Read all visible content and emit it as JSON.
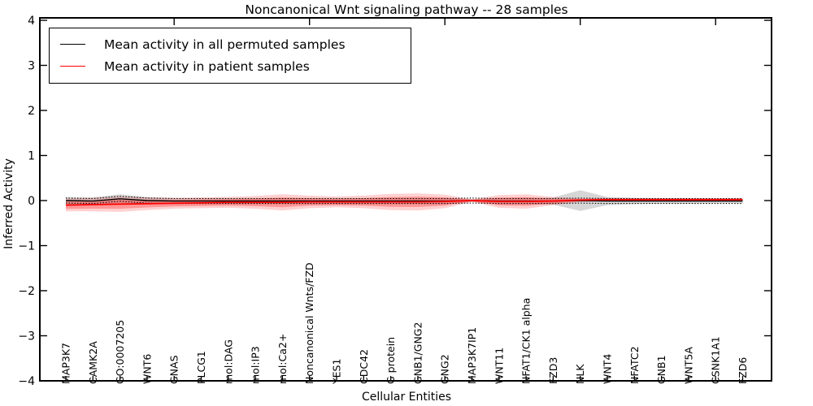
{
  "title": "Noncanonical Wnt signaling pathway -- 28 samples",
  "axes": {
    "ylabel": "Inferred Activity",
    "xlabel": "Cellular Entities",
    "yticks": [
      {
        "label": "4",
        "value": 4
      },
      {
        "label": "3",
        "value": 3
      },
      {
        "label": "2",
        "value": 2
      },
      {
        "label": "1",
        "value": 1
      },
      {
        "label": "0",
        "value": 0
      },
      {
        "label": "−1",
        "value": -1
      },
      {
        "label": "−2",
        "value": -2
      },
      {
        "label": "−3",
        "value": -3
      },
      {
        "label": "−4",
        "value": -4
      }
    ]
  },
  "legend": {
    "entries": [
      {
        "label": "Mean activity in all permuted samples",
        "color": "#000000"
      },
      {
        "label": "Mean activity in patient samples",
        "color": "#ff0000"
      }
    ]
  },
  "chart_data": {
    "type": "line",
    "title": "Noncanonical Wnt signaling pathway -- 28 samples",
    "xlabel": "Cellular Entities",
    "ylabel": "Inferred Activity",
    "ylim": [
      -4,
      4
    ],
    "grid": false,
    "legend_position": "upper left",
    "x_major_ticks": [
      5,
      10,
      15,
      20,
      25
    ],
    "categories": [
      "MAP3K7",
      "CAMK2A",
      "GO:0007205",
      "WNT6",
      "GNAS",
      "PLCG1",
      "mol:DAG",
      "mol:IP3",
      "mol:Ca2+",
      "Noncanonical Wnts/FZD",
      "YES1",
      "CDC42",
      "G protein",
      "GNB1/GNG2",
      "GNG2",
      "MAP3K7IP1",
      "WNT11",
      "NFAT1/CK1 alpha",
      "FZD3",
      "NLK",
      "WNT4",
      "NFATC2",
      "GNB1",
      "WNT5A",
      "CSNK1A1",
      "FZD6"
    ],
    "series": [
      {
        "name": "Mean activity in all permuted samples",
        "color": "#000000",
        "band_fill": "rgba(0,0,0,0.16)",
        "dotted_offset": 0.055,
        "values": [
          0,
          -0.01,
          0.04,
          0,
          -0.01,
          -0.01,
          -0.01,
          -0.01,
          -0.01,
          -0.01,
          -0.01,
          -0.01,
          -0.01,
          -0.01,
          -0.01,
          0,
          -0.01,
          -0.01,
          -0.01,
          0,
          -0.01,
          -0.01,
          -0.01,
          -0.01,
          -0.01,
          -0.01
        ],
        "std": [
          0.08,
          0.08,
          0.1,
          0.08,
          0.07,
          0.07,
          0.07,
          0.07,
          0.07,
          0.07,
          0.07,
          0.07,
          0.07,
          0.07,
          0.07,
          0.03,
          0.07,
          0.07,
          0.08,
          0.23,
          0.09,
          0.07,
          0.06,
          0.06,
          0.05,
          0.05
        ]
      },
      {
        "name": "Mean activity in patient samples",
        "color": "#ff0000",
        "band_fill": "rgba(255,0,0,0.18)",
        "inner_band_fill": "rgba(255,0,0,0.28)",
        "values": [
          -0.1,
          -0.09,
          -0.08,
          -0.07,
          -0.06,
          -0.05,
          -0.04,
          -0.04,
          -0.04,
          -0.03,
          -0.03,
          -0.03,
          -0.03,
          -0.03,
          -0.02,
          0,
          -0.02,
          -0.02,
          -0.01,
          0.01,
          0.02,
          0.02,
          0.02,
          0.02,
          0.02,
          0.02
        ],
        "std": [
          0.14,
          0.15,
          0.17,
          0.14,
          0.12,
          0.12,
          0.12,
          0.14,
          0.18,
          0.14,
          0.12,
          0.14,
          0.18,
          0.19,
          0.15,
          0.03,
          0.14,
          0.16,
          0.09,
          0.04,
          0.04,
          0.04,
          0.04,
          0.04,
          0.04,
          0.04
        ]
      }
    ]
  }
}
